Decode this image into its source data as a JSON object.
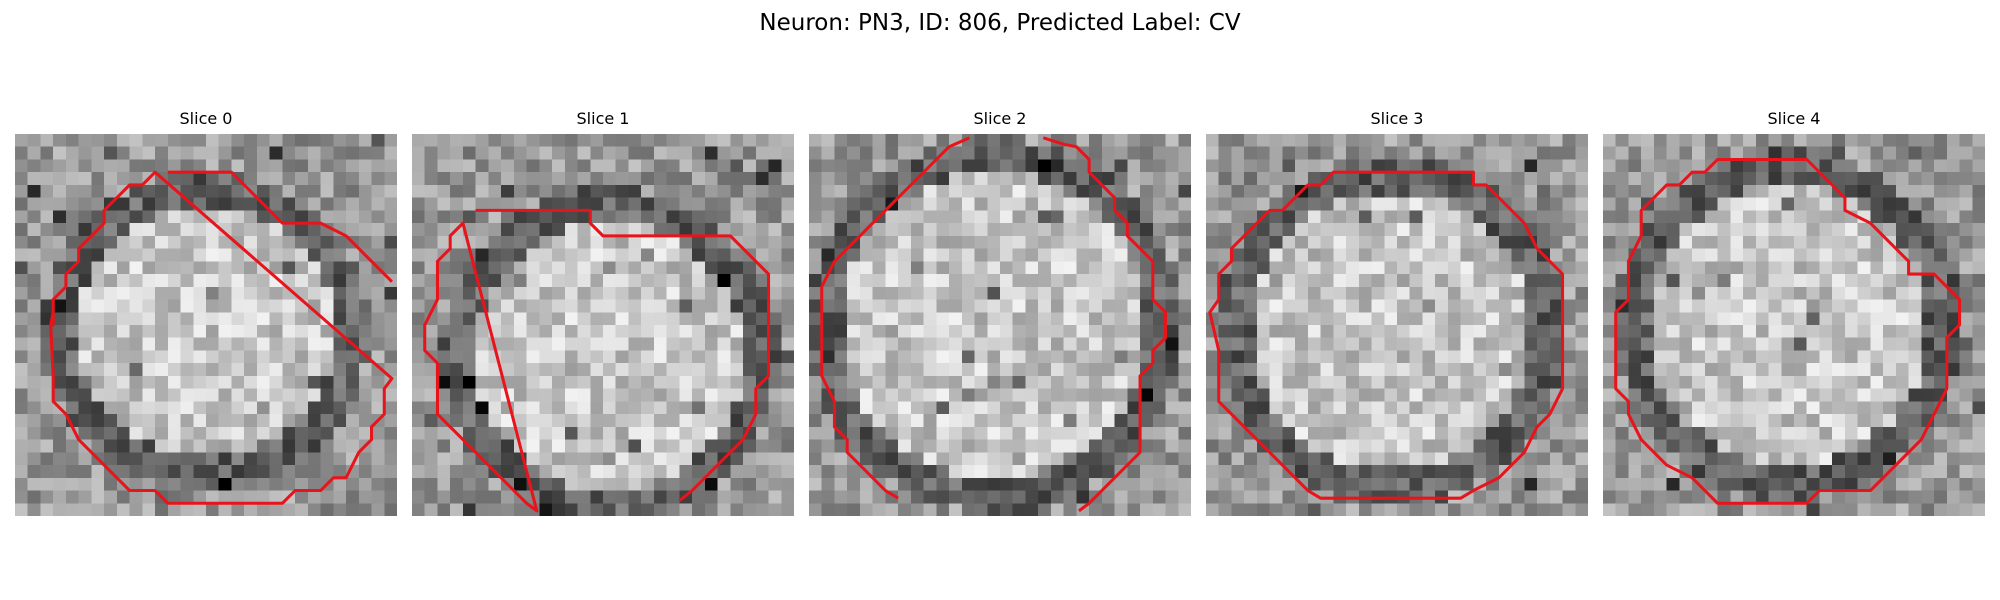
{
  "figure": {
    "title": "Neuron: PN3, ID: 806, Predicted Label: CV"
  },
  "colors": {
    "contour": "#e8141c",
    "background": "#ffffff"
  },
  "slices": [
    {
      "label": "Slice 0"
    },
    {
      "label": "Slice 1"
    },
    {
      "label": "Slice 2"
    },
    {
      "label": "Slice 3"
    },
    {
      "label": "Slice 4"
    }
  ]
}
